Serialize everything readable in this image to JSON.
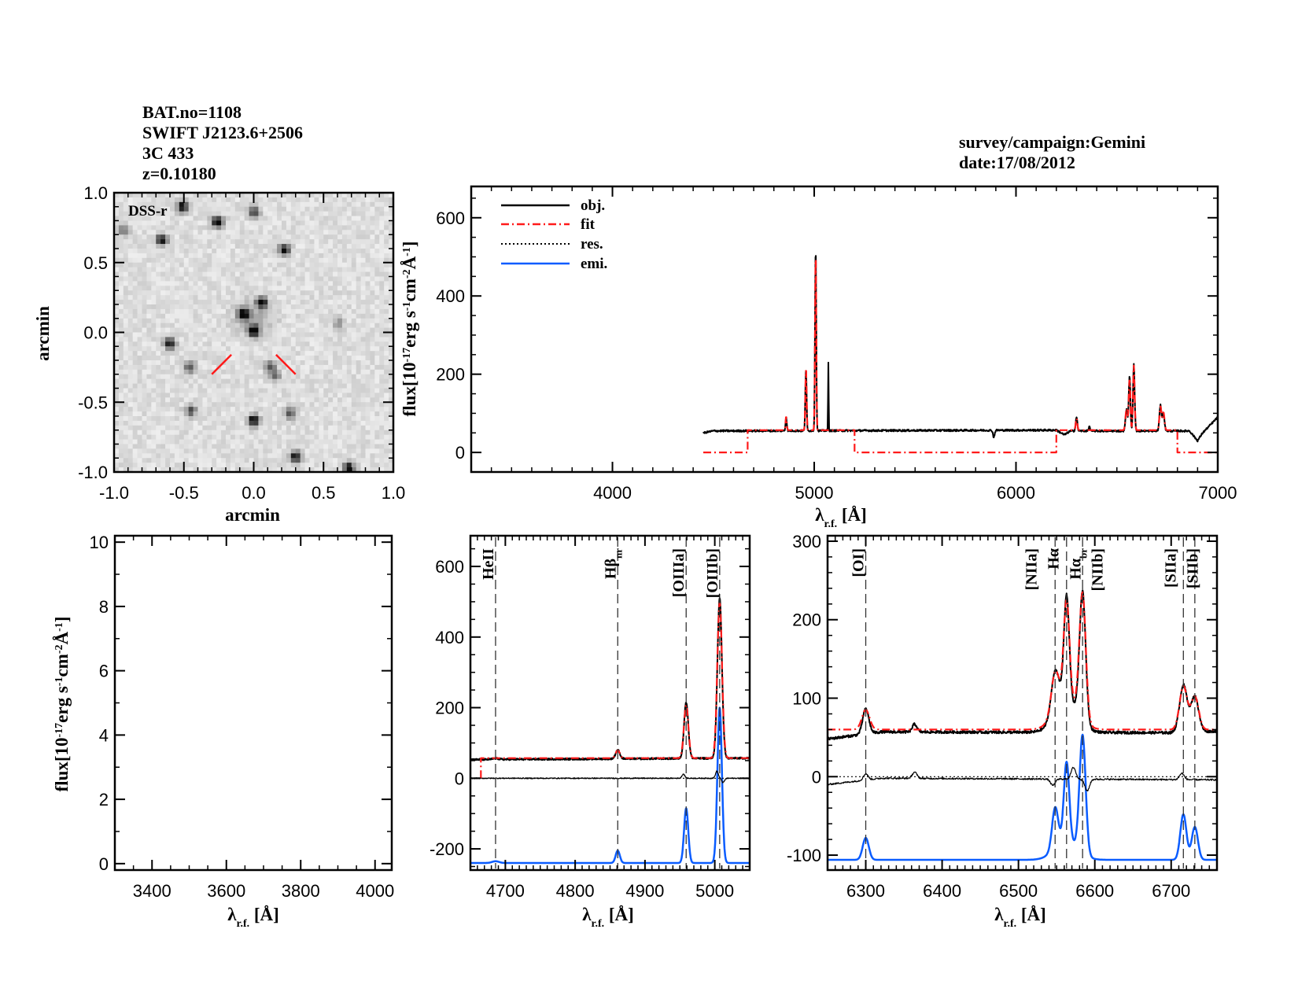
{
  "header": {
    "lines": [
      "BAT.no=1108",
      "SWIFT J2123.6+2506",
      "3C 433",
      "z=0.10180"
    ],
    "survey": "survey/campaign:Gemini",
    "date": "date:17/08/2012"
  },
  "colors": {
    "obj": "#000000",
    "fit": "#ff1a1a",
    "res": "#000000",
    "emi": "#0a5cff",
    "marker": "#ff1a1a",
    "helium_label": "#ff1a1a"
  },
  "labels": {
    "flux": [
      {
        "t": "flux[10"
      },
      {
        "t": "-17",
        "sup": true
      },
      {
        "t": "erg s"
      },
      {
        "t": "-1",
        "sup": true
      },
      {
        "t": "cm"
      },
      {
        "t": "-2",
        "sup": true
      },
      {
        "t": "Å"
      },
      {
        "t": "-1",
        "sup": true
      },
      {
        "t": "]"
      }
    ],
    "wave": [
      {
        "t": "λ"
      },
      {
        "t": "r.f.",
        "sub": true
      },
      {
        "t": " [Å]"
      }
    ],
    "arcmin": "arcmin"
  },
  "chart_data": [
    {
      "id": "image",
      "type": "heatmap",
      "title": "DSS-r",
      "xlabel": "arcmin",
      "ylabel": "arcmin",
      "xlim": [
        -1,
        1
      ],
      "ylim": [
        -1,
        1
      ],
      "xticks": [
        "-1.0",
        "-0.5",
        "0.0",
        "0.5",
        "1.0"
      ],
      "yticks": [
        "-1.0",
        "-0.5",
        "0.0",
        "0.5",
        "1.0"
      ],
      "minor_step": 0.1,
      "sources": [
        [
          -0.51,
          0.9,
          1.0
        ],
        [
          0.0,
          0.86,
          0.7
        ],
        [
          -0.26,
          0.79,
          1.0
        ],
        [
          -0.93,
          0.73,
          0.45
        ],
        [
          -0.66,
          0.66,
          0.9
        ],
        [
          0.22,
          0.59,
          0.9
        ],
        [
          0.06,
          0.21,
          0.9
        ],
        [
          -0.07,
          0.13,
          1.0
        ],
        [
          0.0,
          0.01,
          1.0
        ],
        [
          0.61,
          0.07,
          0.35
        ],
        [
          -0.6,
          -0.08,
          0.9
        ],
        [
          -0.46,
          -0.25,
          0.6
        ],
        [
          0.12,
          -0.24,
          0.55
        ],
        [
          0.15,
          -0.31,
          0.5
        ],
        [
          -0.45,
          -0.56,
          0.6
        ],
        [
          0.0,
          -0.63,
          1.0
        ],
        [
          0.26,
          -0.58,
          0.6
        ],
        [
          0.3,
          -0.89,
          0.9
        ],
        [
          0.68,
          -0.97,
          0.9
        ]
      ],
      "target": [
        0,
        0
      ]
    },
    {
      "id": "full-spectrum",
      "type": "line",
      "xlim": [
        3300,
        7000
      ],
      "ylim": [
        -50,
        680
      ],
      "xticks": [
        4000,
        5000,
        6000,
        7000
      ],
      "yticks": [
        0,
        200,
        400,
        600
      ],
      "x_minor_step": 100,
      "y_minor_step": 50,
      "legend": {
        "position": "top-left",
        "entries": [
          "obj.",
          "fit",
          "res.",
          "emi."
        ]
      },
      "obj": {
        "continuum": [
          [
            4450,
            50
          ],
          [
            4500,
            55
          ],
          [
            6200,
            57
          ],
          [
            6240,
            45
          ],
          [
            6270,
            55
          ],
          [
            6860,
            55
          ],
          [
            6900,
            30
          ],
          [
            6925,
            50
          ],
          [
            7000,
            90
          ]
        ],
        "features": [
          [
            4861,
            35,
            3
          ],
          [
            4959,
            160,
            3
          ],
          [
            5007,
            470,
            3
          ],
          [
            5070,
            175,
            1.5
          ],
          [
            5890,
            -18,
            4
          ],
          [
            6300,
            35,
            4
          ],
          [
            6364,
            12,
            3
          ],
          [
            6548,
            55,
            5
          ],
          [
            6563,
            140,
            4
          ],
          [
            6584,
            170,
            4
          ],
          [
            6716,
            65,
            5
          ],
          [
            6731,
            45,
            5
          ]
        ]
      },
      "fit": {
        "segments": [
          [
            4450,
            4670,
            0
          ],
          [
            4670,
            5200,
            57
          ],
          [
            5200,
            6200,
            0
          ],
          [
            6200,
            6800,
            57
          ],
          [
            6800,
            7000,
            0
          ]
        ],
        "features": [
          [
            4861,
            35,
            3
          ],
          [
            4959,
            160,
            3
          ],
          [
            5007,
            460,
            3
          ],
          [
            6300,
            30,
            4
          ],
          [
            6548,
            55,
            5
          ],
          [
            6563,
            130,
            4
          ],
          [
            6584,
            165,
            4
          ],
          [
            6716,
            60,
            5
          ],
          [
            6731,
            45,
            5
          ]
        ]
      }
    },
    {
      "id": "blue-spectrum",
      "type": "line",
      "xlim": [
        3300,
        4045
      ],
      "ylim": [
        -0.2,
        10.2
      ],
      "xticks": [
        3400,
        3600,
        3800,
        4000
      ],
      "yticks": [
        0,
        2,
        4,
        6,
        8,
        10
      ],
      "x_minor_step": 50,
      "y_minor_step": 1
    },
    {
      "id": "hbeta-region",
      "type": "line",
      "xlim": [
        4650,
        5050
      ],
      "ylim": [
        -260,
        687
      ],
      "xticks": [
        4700,
        4800,
        4900,
        5000
      ],
      "yticks": [
        -200,
        0,
        200,
        400,
        600
      ],
      "x_minor_step": 10,
      "y_minor_step": 50,
      "obj": {
        "continuum": [
          [
            4650,
            53
          ],
          [
            5050,
            57
          ]
        ],
        "features": [
          [
            4686,
            3,
            4
          ],
          [
            4861,
            25,
            3
          ],
          [
            4959,
            160,
            3
          ],
          [
            5007,
            455,
            3.2
          ]
        ]
      },
      "fit": {
        "segments": [
          [
            4665,
            5050,
            57
          ]
        ],
        "features": [
          [
            4861,
            22,
            3
          ],
          [
            4959,
            150,
            3.2
          ],
          [
            5007,
            440,
            3.4
          ]
        ]
      },
      "res": {
        "continuum": [
          [
            4650,
            0
          ],
          [
            5050,
            0
          ]
        ],
        "features": [
          [
            4955,
            12,
            2
          ],
          [
            5003,
            20,
            2
          ],
          [
            5012,
            -12,
            2
          ]
        ]
      },
      "emi": {
        "baseline": -240,
        "features": [
          [
            4686,
            5,
            5
          ],
          [
            4861,
            35,
            3
          ],
          [
            4959,
            155,
            3
          ],
          [
            5007,
            440,
            3.2
          ]
        ]
      },
      "lines": [
        {
          "x": 4686,
          "label": "HeII",
          "red": true
        },
        {
          "x": 4861,
          "label": "Hβ",
          "sub": "nr"
        },
        {
          "x": 4959,
          "label": "[OIIIa]"
        },
        {
          "x": 5007,
          "label": "[OIIIb]"
        }
      ]
    },
    {
      "id": "halpha-region",
      "type": "line",
      "xlim": [
        6250,
        6760
      ],
      "ylim": [
        -119,
        307
      ],
      "xticks": [
        6300,
        6400,
        6500,
        6600,
        6700
      ],
      "yticks": [
        -100,
        0,
        100,
        200,
        300
      ],
      "x_minor_step": 10,
      "y_minor_step": 20,
      "obj": {
        "continuum": [
          [
            6250,
            48
          ],
          [
            6320,
            57
          ],
          [
            6700,
            56
          ],
          [
            6760,
            58
          ]
        ],
        "features": [
          [
            6300,
            32,
            4
          ],
          [
            6364,
            10,
            3
          ],
          [
            6548,
            55,
            5
          ],
          [
            6563,
            135,
            3.5
          ],
          [
            6563,
            40,
            15
          ],
          [
            6584,
            165,
            4
          ],
          [
            6716,
            60,
            5
          ],
          [
            6731,
            45,
            5
          ]
        ]
      },
      "fit": {
        "segments": [
          [
            6250,
            6760,
            60
          ]
        ],
        "features": [
          [
            6300,
            25,
            5
          ],
          [
            6548,
            50,
            5
          ],
          [
            6563,
            125,
            3.8
          ],
          [
            6563,
            40,
            15
          ],
          [
            6584,
            160,
            4.2
          ],
          [
            6716,
            55,
            5
          ],
          [
            6731,
            42,
            5
          ]
        ]
      },
      "res": {
        "continuum": [
          [
            6250,
            -10
          ],
          [
            6320,
            -2
          ],
          [
            6760,
            -4
          ]
        ],
        "features": [
          [
            6300,
            8,
            3
          ],
          [
            6364,
            8,
            3
          ],
          [
            6545,
            -8,
            3
          ],
          [
            6572,
            15,
            3
          ],
          [
            6590,
            -15,
            3
          ],
          [
            6714,
            8,
            3
          ]
        ]
      },
      "emi": {
        "baseline": -106,
        "features": [
          [
            6300,
            28,
            4
          ],
          [
            6548,
            52,
            4
          ],
          [
            6563,
            100,
            3.5
          ],
          [
            6563,
            25,
            15
          ],
          [
            6584,
            150,
            4
          ],
          [
            6716,
            58,
            4
          ],
          [
            6731,
            42,
            4
          ]
        ]
      },
      "lines": [
        {
          "x": 6300,
          "label": "[OI]"
        },
        {
          "x": 6548,
          "label": "[NIIa]"
        },
        {
          "x": 6563,
          "label": "Hα"
        },
        {
          "x": 6563,
          "label": "Hα",
          "sub": "br",
          "right": true
        },
        {
          "x": 6584,
          "label": "[NIIb]"
        },
        {
          "x": 6716,
          "label": "[SIIa]"
        },
        {
          "x": 6731,
          "label": "[SIIb]"
        }
      ]
    }
  ]
}
